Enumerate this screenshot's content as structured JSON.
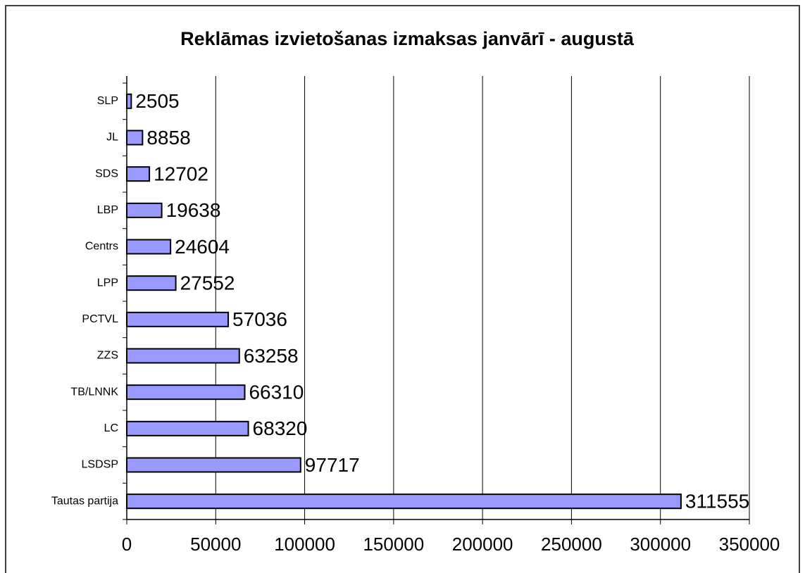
{
  "chart_data": {
    "type": "hbar",
    "title": "Reklāmas izvietošanas izmaksas janvārī - augustā",
    "categories": [
      "SLP",
      "JL",
      "SDS",
      "LBP",
      "Centrs",
      "LPP",
      "PCTVL",
      "ZZS",
      "TB/LNNK",
      "LC",
      "LSDSP",
      "Tautas partija"
    ],
    "values": [
      2505,
      8858,
      12702,
      19638,
      24604,
      27552,
      57036,
      63258,
      66310,
      68320,
      97717,
      311555
    ],
    "color": "#9999ff",
    "xlim": [
      0,
      350000
    ],
    "xticks": [
      0,
      50000,
      100000,
      150000,
      200000,
      250000,
      300000,
      350000
    ],
    "grid": true
  }
}
